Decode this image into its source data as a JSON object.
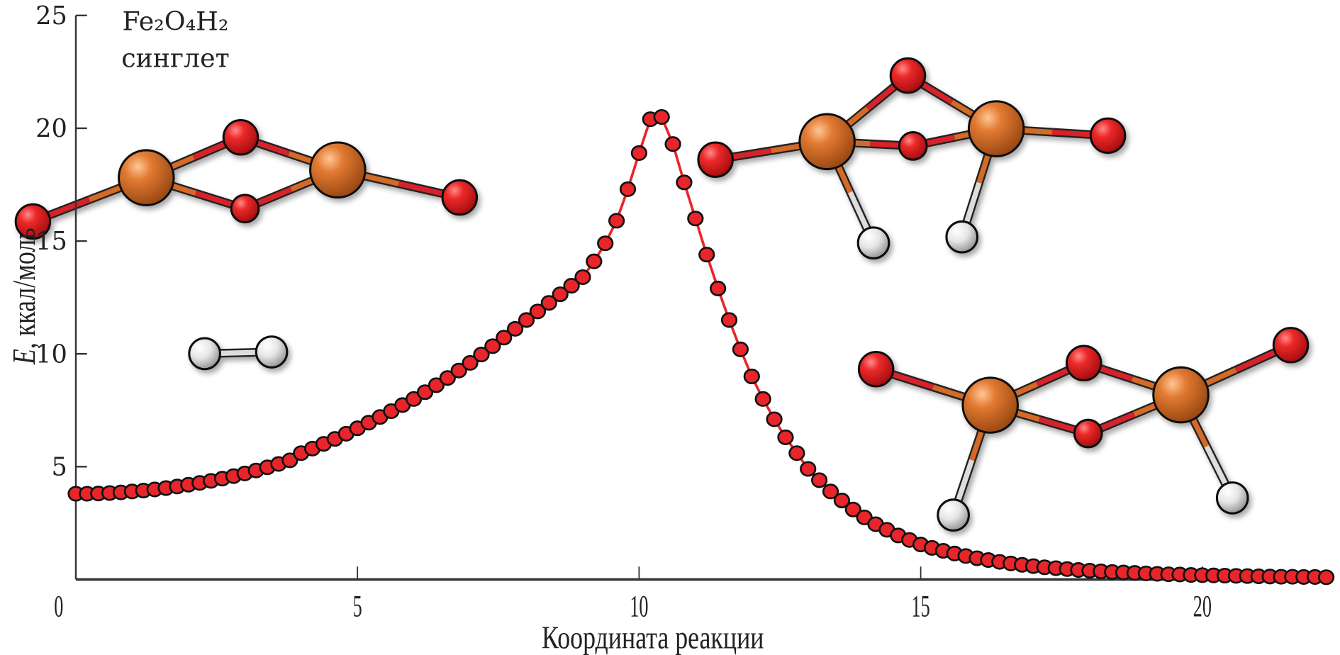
{
  "chart_data": {
    "type": "scatter",
    "title": "Fe₂O₄H₂",
    "subtitle": "синглет",
    "xlabel": "Координата реакции",
    "ylabel_italic": "E",
    "ylabel_rest": ", ккал/моль",
    "xlim": [
      0,
      22.2
    ],
    "ylim": [
      0,
      25
    ],
    "xticks": [
      "0",
      "5",
      "10",
      "15",
      "20"
    ],
    "yticks": [
      "5",
      "10",
      "15",
      "20",
      "25"
    ],
    "grid": false,
    "marker_color": "#e8252a",
    "marker_edge": "#111111",
    "series": [
      {
        "x": [
          0.0,
          0.2,
          0.4,
          0.6,
          0.8,
          1.0,
          1.2,
          1.4,
          1.6,
          1.8,
          2.0,
          2.2,
          2.4,
          2.6,
          2.8,
          3.0,
          3.2,
          3.4,
          3.6,
          3.8,
          4.0,
          4.2,
          4.4,
          4.6,
          4.8,
          5.0,
          5.2,
          5.4,
          5.6,
          5.8,
          6.0,
          6.2,
          6.4,
          6.6,
          6.8,
          7.0,
          7.2,
          7.4,
          7.6,
          7.8,
          8.0,
          8.2,
          8.4,
          8.6,
          8.8,
          9.0,
          9.2,
          9.4,
          9.6,
          9.8,
          10.0,
          10.2,
          10.4,
          10.6,
          10.8,
          11.0,
          11.2,
          11.4,
          11.6,
          11.8,
          12.0,
          12.2,
          12.4,
          12.6,
          12.8,
          13.0,
          13.2,
          13.4,
          13.6,
          13.8,
          14.0,
          14.2,
          14.4,
          14.6,
          14.8,
          15.0,
          15.2,
          15.4,
          15.6,
          15.8,
          16.0,
          16.2,
          16.4,
          16.6,
          16.8,
          17.0,
          17.2,
          17.4,
          17.6,
          17.8,
          18.0,
          18.2,
          18.4,
          18.6,
          18.8,
          19.0,
          19.2,
          19.4,
          19.6,
          19.8,
          20.0,
          20.2,
          20.4,
          20.6,
          20.8,
          21.0,
          21.2,
          21.4,
          21.6,
          21.8,
          22.0,
          22.2
        ],
        "y": [
          3.8,
          3.8,
          3.81,
          3.83,
          3.86,
          3.9,
          3.94,
          3.99,
          4.05,
          4.12,
          4.2,
          4.28,
          4.37,
          4.47,
          4.58,
          4.7,
          4.83,
          4.97,
          5.12,
          5.28,
          5.6,
          5.8,
          6.01,
          6.23,
          6.46,
          6.7,
          6.95,
          7.2,
          7.46,
          7.73,
          8.0,
          8.3,
          8.61,
          8.93,
          9.26,
          9.6,
          9.97,
          10.34,
          10.72,
          11.11,
          11.5,
          11.88,
          12.26,
          12.64,
          13.02,
          13.4,
          14.1,
          14.9,
          15.9,
          17.3,
          18.9,
          20.4,
          20.5,
          19.3,
          17.6,
          16.0,
          14.4,
          12.9,
          11.5,
          10.2,
          9.0,
          8.0,
          7.1,
          6.3,
          5.6,
          4.9,
          4.4,
          3.9,
          3.5,
          3.1,
          2.75,
          2.45,
          2.2,
          1.95,
          1.75,
          1.55,
          1.4,
          1.27,
          1.15,
          1.04,
          0.94,
          0.86,
          0.78,
          0.71,
          0.65,
          0.59,
          0.54,
          0.5,
          0.46,
          0.42,
          0.39,
          0.36,
          0.33,
          0.31,
          0.29,
          0.27,
          0.25,
          0.23,
          0.22,
          0.2,
          0.19,
          0.18,
          0.17,
          0.16,
          0.15,
          0.14,
          0.13,
          0.12,
          0.12,
          0.11,
          0.11,
          0.1
        ]
      }
    ]
  },
  "molecule_colors": {
    "oxygen": "#e8252a",
    "iron": "#e07a30",
    "hydrogen": "#eeeeee"
  }
}
